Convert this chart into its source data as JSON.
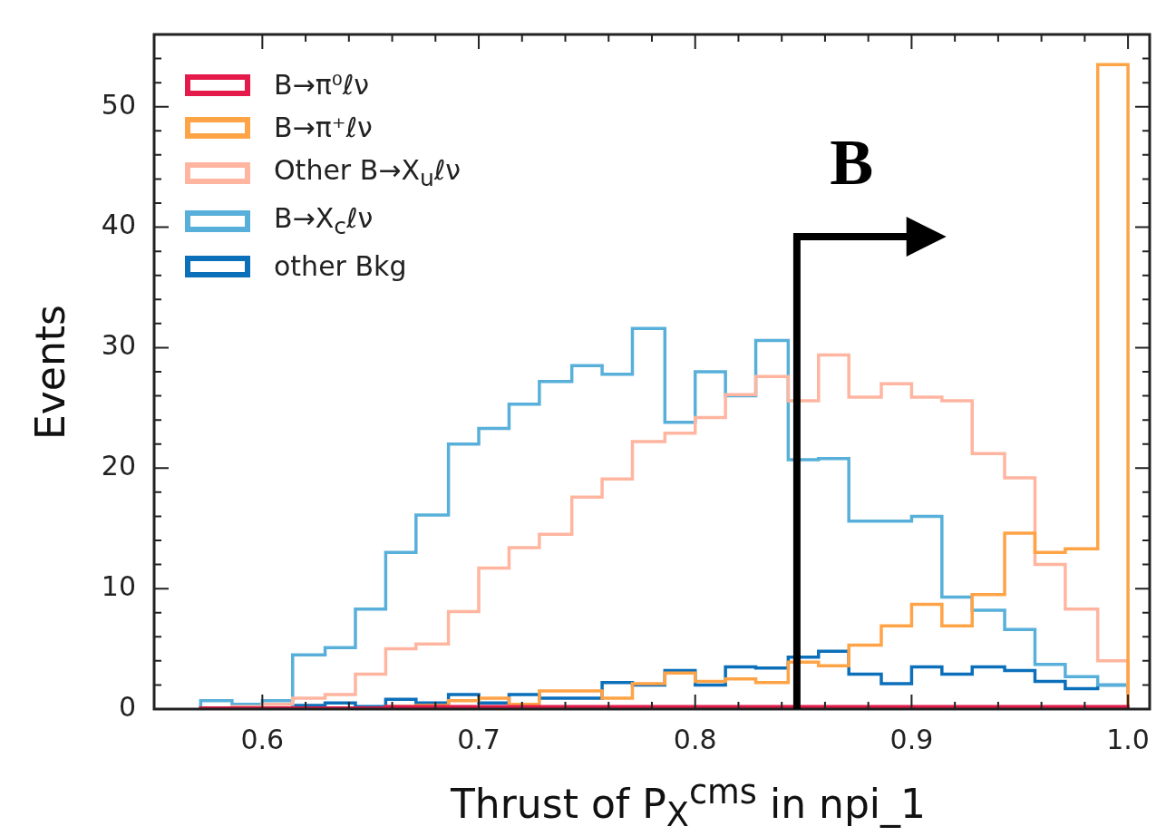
{
  "chart_data": {
    "type": "histogram",
    "xlabel": "Thrust of P$_{X}$$^{cms}$ in npi_1",
    "ylabel": "Events",
    "bins": [
      0.5715,
      0.586,
      0.6,
      0.614,
      0.629,
      0.643,
      0.657,
      0.671,
      0.686,
      0.7,
      0.714,
      0.728,
      0.743,
      0.757,
      0.771,
      0.786,
      0.8,
      0.814,
      0.828,
      0.843,
      0.857,
      0.871,
      0.886,
      0.9,
      0.914,
      0.928,
      0.943,
      0.957,
      0.971,
      0.986,
      1.0
    ],
    "series": [
      {
        "name": "B→π⁰ℓν",
        "color": "#e31a4a",
        "values": [
          0.1,
          0.1,
          0.1,
          0.1,
          0.1,
          0.1,
          0.2,
          0.2,
          0.2,
          0.2,
          0.2,
          0.2,
          0.2,
          0.2,
          0.2,
          0.2,
          0.2,
          0.2,
          0.2,
          0.2,
          0.2,
          0.2,
          0.2,
          0.2,
          0.2,
          0.2,
          0.2,
          0.2,
          0.2,
          0.2
        ]
      },
      {
        "name": "B→π⁺ℓν",
        "color": "#ffa347",
        "values": [
          0,
          0,
          0,
          0,
          0,
          0.1,
          0.2,
          0.3,
          0.7,
          0.9,
          0.4,
          1.5,
          1.5,
          0.9,
          2.1,
          3.0,
          2.3,
          2.5,
          2.2,
          3.9,
          3.6,
          5.3,
          6.9,
          8.7,
          6.9,
          9.5,
          14.6,
          13.0,
          13.3,
          53.5
        ]
      },
      {
        "name": "Other B→X$_{u}$ℓν",
        "color": "#ffb5a0",
        "values": [
          0.1,
          0.2,
          0.4,
          0.9,
          1.2,
          2.9,
          5.0,
          5.4,
          8.1,
          11.7,
          13.4,
          14.5,
          17.6,
          19.1,
          22.2,
          22.9,
          24.2,
          26.1,
          27.6,
          25.6,
          29.4,
          25.9,
          27.0,
          25.9,
          25.6,
          21.2,
          19.2,
          12.0,
          8.3,
          4.0
        ]
      },
      {
        "name": "B→X$_{c}$ℓν",
        "color": "#58b0da",
        "values": [
          0.7,
          0.4,
          0.7,
          4.5,
          5.1,
          8.3,
          13.0,
          16.1,
          22.0,
          23.3,
          25.3,
          27.2,
          28.5,
          27.8,
          31.6,
          23.8,
          28.0,
          26.0,
          30.6,
          20.7,
          20.8,
          15.6,
          15.6,
          16.0,
          9.3,
          8.2,
          6.6,
          3.7,
          2.7,
          2.0
        ]
      },
      {
        "name": "other Bkg",
        "color": "#0b6fba",
        "values": [
          0.1,
          0.1,
          0.1,
          0.3,
          0.5,
          0.2,
          0.8,
          0.5,
          1.2,
          0.5,
          1.2,
          0.9,
          0.9,
          2.2,
          2.0,
          3.2,
          2.0,
          3.5,
          3.4,
          4.3,
          4.8,
          2.9,
          2.1,
          3.5,
          2.9,
          3.5,
          3.2,
          2.3,
          1.7,
          2.0
        ]
      }
    ],
    "xlim": [
      0.55,
      1.01
    ],
    "ylim": [
      0,
      56
    ],
    "xticks": [
      0.6,
      {
        "value": 0.62,
        "label": null
      },
      {
        "value": 0.64,
        "label": null
      },
      {
        "value": 0.66,
        "label": null
      },
      {
        "value": 0.68,
        "label": null
      },
      0.7,
      {
        "value": 0.72,
        "label": null
      },
      {
        "value": 0.74,
        "label": null
      },
      {
        "value": 0.76,
        "label": null
      },
      {
        "value": 0.78,
        "label": null
      },
      0.8,
      {
        "value": 0.82,
        "label": null
      },
      {
        "value": 0.84,
        "label": null
      },
      {
        "value": 0.86,
        "label": null
      },
      {
        "value": 0.88,
        "label": null
      },
      0.9,
      {
        "value": 0.92,
        "label": null
      },
      {
        "value": 0.94,
        "label": null
      },
      {
        "value": 0.96,
        "label": null
      },
      {
        "value": 0.98,
        "label": null
      },
      {
        "value": 1.0,
        "label": "1.0"
      }
    ],
    "yticks": [
      0,
      {
        "value": 2,
        "label": null
      },
      {
        "value": 4,
        "label": null
      },
      {
        "value": 6,
        "label": null
      },
      {
        "value": 8,
        "label": null
      },
      10,
      {
        "value": 12,
        "label": null
      },
      {
        "value": 14,
        "label": null
      },
      {
        "value": 16,
        "label": null
      },
      {
        "value": 18,
        "label": null
      },
      20,
      {
        "value": 22,
        "label": null
      },
      {
        "value": 24,
        "label": null
      },
      {
        "value": 26,
        "label": null
      },
      {
        "value": 28,
        "label": null
      },
      30,
      {
        "value": 32,
        "label": null
      },
      {
        "value": 34,
        "label": null
      },
      {
        "value": 36,
        "label": null
      },
      {
        "value": 38,
        "label": null
      },
      40,
      {
        "value": 42,
        "label": null
      },
      {
        "value": 44,
        "label": null
      },
      {
        "value": 46,
        "label": null
      },
      {
        "value": 48,
        "label": null
      },
      50,
      {
        "value": 52,
        "label": null
      },
      {
        "value": 54,
        "label": null
      }
    ],
    "ref_lines": [
      {
        "axis": "x",
        "value": 0.847,
        "label": "B",
        "color": "#000000"
      }
    ],
    "legend": "top left",
    "grid": false
  }
}
